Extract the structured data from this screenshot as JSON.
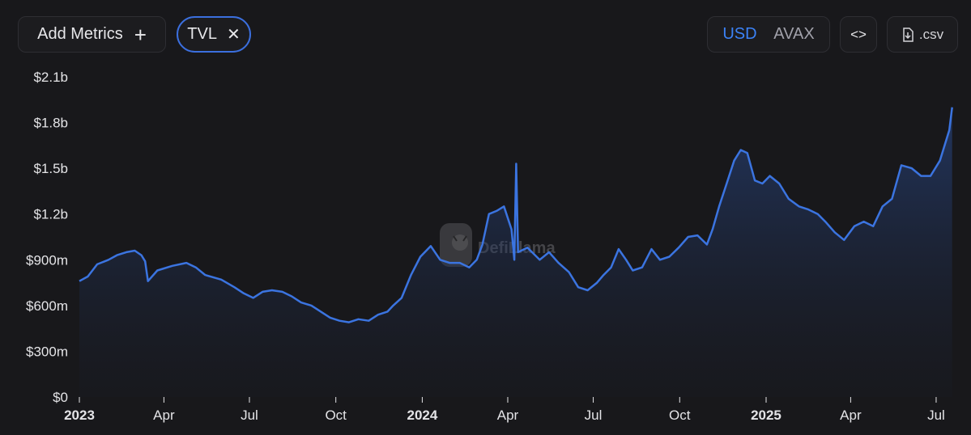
{
  "toolbar": {
    "add_metrics_label": "Add Metrics",
    "add_metrics_icon": "plus-icon",
    "metric_chip_label": "TVL",
    "metric_chip_icon": "close-icon",
    "currency_options": [
      "USD",
      "AVAX"
    ],
    "currency_selected": "USD",
    "embed_label": "<>",
    "embed_icon": "code-icon",
    "csv_label": ".csv",
    "csv_icon": "download-icon"
  },
  "watermark": {
    "text": "DefiLlama",
    "icon": "llama-logo"
  },
  "colors": {
    "background": "#18181b",
    "line": "#3b74e0",
    "accent": "#3b82f6"
  },
  "chart_data": {
    "type": "area",
    "series": [
      {
        "name": "TVL",
        "points": [
          [
            "2023-01-01",
            760000000
          ],
          [
            "2023-01-10",
            790000000
          ],
          [
            "2023-01-20",
            870000000
          ],
          [
            "2023-02-01",
            900000000
          ],
          [
            "2023-02-10",
            930000000
          ],
          [
            "2023-02-20",
            950000000
          ],
          [
            "2023-03-01",
            960000000
          ],
          [
            "2023-03-08",
            930000000
          ],
          [
            "2023-03-12",
            890000000
          ],
          [
            "2023-03-15",
            760000000
          ],
          [
            "2023-03-25",
            830000000
          ],
          [
            "2023-04-10",
            860000000
          ],
          [
            "2023-04-25",
            880000000
          ],
          [
            "2023-05-05",
            850000000
          ],
          [
            "2023-05-15",
            800000000
          ],
          [
            "2023-06-01",
            770000000
          ],
          [
            "2023-06-15",
            720000000
          ],
          [
            "2023-06-25",
            680000000
          ],
          [
            "2023-07-05",
            650000000
          ],
          [
            "2023-07-15",
            690000000
          ],
          [
            "2023-07-25",
            700000000
          ],
          [
            "2023-08-05",
            690000000
          ],
          [
            "2023-08-15",
            660000000
          ],
          [
            "2023-08-25",
            620000000
          ],
          [
            "2023-09-05",
            600000000
          ],
          [
            "2023-09-15",
            560000000
          ],
          [
            "2023-09-25",
            520000000
          ],
          [
            "2023-10-05",
            500000000
          ],
          [
            "2023-10-15",
            490000000
          ],
          [
            "2023-10-25",
            510000000
          ],
          [
            "2023-11-05",
            500000000
          ],
          [
            "2023-11-15",
            540000000
          ],
          [
            "2023-11-25",
            560000000
          ],
          [
            "2023-12-01",
            600000000
          ],
          [
            "2023-12-10",
            650000000
          ],
          [
            "2023-12-20",
            800000000
          ],
          [
            "2023-12-30",
            920000000
          ],
          [
            "2024-01-10",
            990000000
          ],
          [
            "2024-01-20",
            900000000
          ],
          [
            "2024-01-30",
            880000000
          ],
          [
            "2024-02-10",
            880000000
          ],
          [
            "2024-02-20",
            850000000
          ],
          [
            "2024-02-28",
            900000000
          ],
          [
            "2024-03-05",
            1000000000
          ],
          [
            "2024-03-12",
            1200000000
          ],
          [
            "2024-03-20",
            1220000000
          ],
          [
            "2024-03-28",
            1250000000
          ],
          [
            "2024-04-05",
            1100000000
          ],
          [
            "2024-04-08",
            900000000
          ],
          [
            "2024-04-10",
            1530000000
          ],
          [
            "2024-04-12",
            950000000
          ],
          [
            "2024-04-22",
            980000000
          ],
          [
            "2024-05-05",
            900000000
          ],
          [
            "2024-05-15",
            950000000
          ],
          [
            "2024-05-25",
            880000000
          ],
          [
            "2024-06-05",
            820000000
          ],
          [
            "2024-06-15",
            720000000
          ],
          [
            "2024-06-25",
            700000000
          ],
          [
            "2024-07-05",
            750000000
          ],
          [
            "2024-07-12",
            800000000
          ],
          [
            "2024-07-20",
            850000000
          ],
          [
            "2024-07-28",
            970000000
          ],
          [
            "2024-08-05",
            900000000
          ],
          [
            "2024-08-12",
            830000000
          ],
          [
            "2024-08-22",
            850000000
          ],
          [
            "2024-09-01",
            970000000
          ],
          [
            "2024-09-10",
            900000000
          ],
          [
            "2024-09-20",
            920000000
          ],
          [
            "2024-09-30",
            980000000
          ],
          [
            "2024-10-10",
            1050000000
          ],
          [
            "2024-10-20",
            1060000000
          ],
          [
            "2024-10-30",
            1000000000
          ],
          [
            "2024-11-05",
            1100000000
          ],
          [
            "2024-11-12",
            1250000000
          ],
          [
            "2024-11-20",
            1400000000
          ],
          [
            "2024-11-28",
            1550000000
          ],
          [
            "2024-12-05",
            1620000000
          ],
          [
            "2024-12-12",
            1600000000
          ],
          [
            "2024-12-20",
            1420000000
          ],
          [
            "2024-12-28",
            1400000000
          ],
          [
            "2025-01-05",
            1450000000
          ],
          [
            "2025-01-15",
            1400000000
          ],
          [
            "2025-01-25",
            1300000000
          ],
          [
            "2025-02-05",
            1250000000
          ],
          [
            "2025-02-15",
            1230000000
          ],
          [
            "2025-02-25",
            1200000000
          ],
          [
            "2025-03-05",
            1150000000
          ],
          [
            "2025-03-15",
            1080000000
          ],
          [
            "2025-03-25",
            1030000000
          ],
          [
            "2025-04-05",
            1120000000
          ],
          [
            "2025-04-15",
            1150000000
          ],
          [
            "2025-04-25",
            1120000000
          ],
          [
            "2025-05-05",
            1250000000
          ],
          [
            "2025-05-15",
            1300000000
          ],
          [
            "2025-05-25",
            1520000000
          ],
          [
            "2025-06-05",
            1500000000
          ],
          [
            "2025-06-15",
            1450000000
          ],
          [
            "2025-06-25",
            1450000000
          ],
          [
            "2025-07-05",
            1550000000
          ],
          [
            "2025-07-10",
            1650000000
          ],
          [
            "2025-07-15",
            1750000000
          ],
          [
            "2025-07-18",
            1900000000
          ]
        ]
      }
    ],
    "x_ticks": [
      {
        "date": "2023-01-01",
        "label": "2023",
        "bold": true
      },
      {
        "date": "2023-04-01",
        "label": "Apr",
        "bold": false
      },
      {
        "date": "2023-07-01",
        "label": "Jul",
        "bold": false
      },
      {
        "date": "2023-10-01",
        "label": "Oct",
        "bold": false
      },
      {
        "date": "2024-01-01",
        "label": "2024",
        "bold": true
      },
      {
        "date": "2024-04-01",
        "label": "Apr",
        "bold": false
      },
      {
        "date": "2024-07-01",
        "label": "Jul",
        "bold": false
      },
      {
        "date": "2024-10-01",
        "label": "Oct",
        "bold": false
      },
      {
        "date": "2025-01-01",
        "label": "2025",
        "bold": true
      },
      {
        "date": "2025-04-01",
        "label": "Apr",
        "bold": false
      },
      {
        "date": "2025-07-01",
        "label": "Jul",
        "bold": false
      }
    ],
    "y_ticks": [
      {
        "value": 0,
        "label": "$0"
      },
      {
        "value": 300000000,
        "label": "$300m"
      },
      {
        "value": 600000000,
        "label": "$600m"
      },
      {
        "value": 900000000,
        "label": "$900m"
      },
      {
        "value": 1200000000,
        "label": "$1.2b"
      },
      {
        "value": 1500000000,
        "label": "$1.5b"
      },
      {
        "value": 1800000000,
        "label": "$1.8b"
      },
      {
        "value": 2100000000,
        "label": "$2.1b"
      }
    ],
    "ylim": [
      0,
      2100000000
    ],
    "xlim": [
      "2023-01-01",
      "2025-07-20"
    ],
    "grid": false,
    "legend": "none"
  }
}
